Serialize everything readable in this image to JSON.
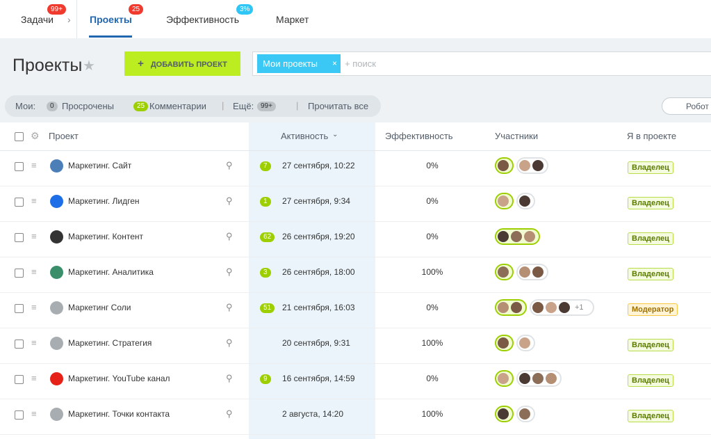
{
  "tabs": [
    {
      "label": "Задачи",
      "badge": "99+"
    },
    {
      "label": "Проекты",
      "badge": "25"
    },
    {
      "label": "Эффективность",
      "badge": "3%"
    },
    {
      "label": "Маркет"
    }
  ],
  "header": {
    "title": "Проекты",
    "add_button": "ДОБАВИТЬ ПРОЕКТ",
    "filter_tag": "Мои проекты",
    "search_placeholder": "+ поиск"
  },
  "counters": {
    "label": "Мои:",
    "overdue_count": "0",
    "overdue": "Просрочены",
    "comments_count": "25",
    "comments": "Комментарии",
    "more": "Ещё:",
    "more_count": "99+",
    "read_all": "Прочитать все",
    "robots": "Робот"
  },
  "table": {
    "columns": [
      "Проект",
      "Активность",
      "Эффективность",
      "Участники",
      "Я в проекте"
    ],
    "rows": [
      {
        "name": "Маркетинг. Сайт",
        "badge": "7",
        "activity": "27 сентября, 10:22",
        "efficiency": "0%",
        "role": "Владелец"
      },
      {
        "name": "Маркетинг. Лидген",
        "badge": "1",
        "activity": "27 сентября, 9:34",
        "efficiency": "0%",
        "role": "Владелец"
      },
      {
        "name": "Маркетинг. Контент",
        "badge": "62",
        "activity": "26 сентября, 19:20",
        "efficiency": "0%",
        "role": "Владелец"
      },
      {
        "name": "Маркетинг. Аналитика",
        "badge": "3",
        "activity": "26 сентября, 18:00",
        "efficiency": "100%",
        "role": "Владелец"
      },
      {
        "name": "Маркетинг Соли",
        "badge": "51",
        "activity": "21 сентября, 16:03",
        "efficiency": "0%",
        "extra": "+1",
        "role": "Модератор"
      },
      {
        "name": "Маркетинг. Стратегия",
        "activity": "20 сентября, 9:31",
        "efficiency": "100%",
        "role": "Владелец"
      },
      {
        "name": "Маркетинг. YouTube канал",
        "badge": "9",
        "activity": "16 сентября, 14:59",
        "efficiency": "0%",
        "role": "Владелец"
      },
      {
        "name": "Маркетинг. Точки контакта",
        "activity": "2 августа, 14:20",
        "efficiency": "100%",
        "role": "Владелец"
      }
    ]
  }
}
